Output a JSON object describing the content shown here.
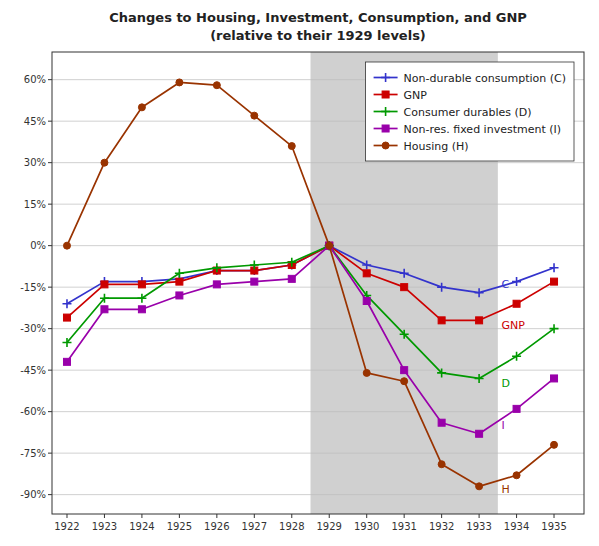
{
  "chart_data": {
    "type": "line",
    "title": "Changes to Housing, Investment, Consumption, and GNP",
    "subtitle": "(relative to their 1929 levels)",
    "x": [
      1922,
      1923,
      1924,
      1925,
      1926,
      1927,
      1928,
      1929,
      1930,
      1931,
      1932,
      1933,
      1934,
      1935
    ],
    "series": [
      {
        "name": "Non-durable consumption (C)",
        "color": "#3333CC",
        "marker": "plus",
        "values": [
          -21,
          -13,
          -13,
          -12,
          -9,
          -9,
          -7,
          0,
          -7,
          -10,
          -15,
          -17,
          -13,
          -8
        ]
      },
      {
        "name": "GNP",
        "color": "#CC0000",
        "marker": "square",
        "values": [
          -26,
          -14,
          -14,
          -13,
          -9,
          -9,
          -7,
          0,
          -10,
          -15,
          -27,
          -27,
          -21,
          -13
        ]
      },
      {
        "name": "Consumer durables (D)",
        "color": "#009900",
        "marker": "plus",
        "values": [
          -35,
          -19,
          -19,
          -10,
          -8,
          -7,
          -6,
          0,
          -18,
          -32,
          -46,
          -48,
          -40,
          -30
        ]
      },
      {
        "name": "Non-res. fixed investment (I)",
        "color": "#9900AA",
        "marker": "square",
        "values": [
          -42,
          -23,
          -23,
          -18,
          -14,
          -13,
          -12,
          0,
          -20,
          -45,
          -64,
          -68,
          -59,
          -48
        ]
      },
      {
        "name": "Housing (H)",
        "color": "#993300",
        "marker": "circle",
        "values": [
          0,
          30,
          50,
          59,
          58,
          47,
          36,
          0,
          -46,
          -49,
          -79,
          -87,
          -83,
          -72
        ]
      }
    ],
    "xlim": [
      1921.6,
      1935.8
    ],
    "xticks": [
      1922,
      1923,
      1924,
      1925,
      1926,
      1927,
      1928,
      1929,
      1930,
      1931,
      1932,
      1933,
      1934,
      1935
    ],
    "ylim": [
      -97,
      70
    ],
    "yticks": [
      {
        "value": 60,
        "label": "60%"
      },
      {
        "value": 45,
        "label": "45%"
      },
      {
        "value": 30,
        "label": "30%"
      },
      {
        "value": 15,
        "label": "15%"
      },
      {
        "value": 0,
        "label": "0%"
      },
      {
        "value": -15,
        "label": "-15%"
      },
      {
        "value": -30,
        "label": "-30%"
      },
      {
        "value": -45,
        "label": "-45%"
      },
      {
        "value": -60,
        "label": "-60%"
      },
      {
        "value": -75,
        "label": "-75%"
      },
      {
        "value": -90,
        "label": "-90%"
      }
    ],
    "shaded_region": {
      "start": 1928.5,
      "end": 1933.5,
      "color": "#D0D0D0"
    },
    "annotations": [
      {
        "text": "C",
        "x": 1933.6,
        "y": -14,
        "color": "#3333CC"
      },
      {
        "text": "GNP",
        "x": 1933.6,
        "y": -29,
        "color": "#CC0000"
      },
      {
        "text": "D",
        "x": 1933.6,
        "y": -50,
        "color": "#009900"
      },
      {
        "text": "I",
        "x": 1933.6,
        "y": -65,
        "color": "#9900AA"
      },
      {
        "text": "H",
        "x": 1933.6,
        "y": -88,
        "color": "#993300"
      }
    ],
    "grid": "y",
    "legend": "upper right"
  }
}
